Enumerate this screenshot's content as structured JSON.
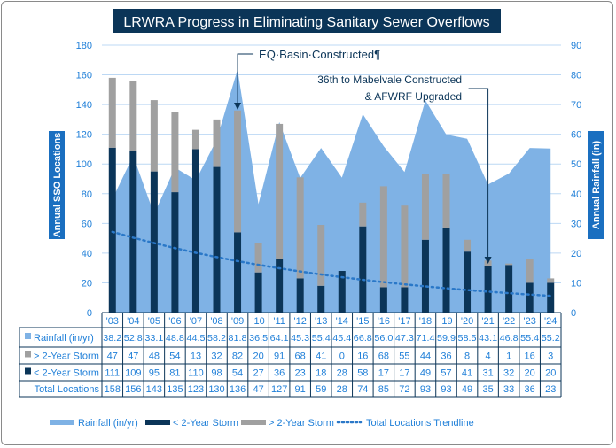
{
  "chart_data": {
    "type": "bar+area+line",
    "title": "LRWRA Progress in Eliminating Sanitary Sewer Overflows",
    "ylabel_left": "Annual SSO Locations",
    "ylabel_right": "Annual Rainfall (in)",
    "ylim_left": [
      0,
      180
    ],
    "ylim_right": [
      0,
      90
    ],
    "yticks_left": [
      0,
      20,
      40,
      60,
      80,
      100,
      120,
      140,
      160,
      180
    ],
    "yticks_right": [
      0,
      10,
      20,
      30,
      40,
      50,
      60,
      70,
      80,
      90
    ],
    "grid": true,
    "legend_position": "bottom",
    "categories": [
      "'03",
      "'04",
      "'05",
      "'06",
      "'07",
      "'08",
      "'09",
      "'10",
      "'11",
      "'12",
      "'13",
      "'14",
      "'15",
      "'16",
      "'17",
      "'18",
      "'19",
      "'20",
      "'21",
      "'22",
      "'23",
      "'24"
    ],
    "series": [
      {
        "name": "Rainfall (in/yr)",
        "type": "area",
        "axis": "right",
        "color": "#7fb2e5",
        "values": [
          38.2,
          52.8,
          33.1,
          48.8,
          44.5,
          58.2,
          81.8,
          36.5,
          64.1,
          45.3,
          55.4,
          45.4,
          66.8,
          56.0,
          47.3,
          71.4,
          59.9,
          58.5,
          43.1,
          46.8,
          55.4,
          55.2
        ]
      },
      {
        "name": "> 2-Year Storm",
        "type": "bar",
        "color": "#a0a0a0",
        "values": [
          47,
          47,
          48,
          54,
          13,
          32,
          82,
          20,
          91,
          68,
          41,
          0,
          16,
          68,
          55,
          44,
          36,
          8,
          4,
          1,
          16,
          3
        ]
      },
      {
        "name": "< 2-Year Storm",
        "type": "bar",
        "color": "#0b3558",
        "values": [
          111,
          109,
          95,
          81,
          110,
          98,
          54,
          27,
          36,
          23,
          18,
          28,
          58,
          17,
          17,
          49,
          57,
          41,
          31,
          32,
          20,
          20
        ]
      },
      {
        "name": "Total Locations",
        "type": "table-row",
        "values": [
          158,
          156,
          143,
          135,
          123,
          130,
          136,
          47,
          127,
          91,
          59,
          28,
          74,
          85,
          72,
          93,
          93,
          49,
          35,
          33,
          36,
          23
        ]
      },
      {
        "name": "Total Locations Trendline",
        "type": "line",
        "style": "dotted",
        "color": "#2a78c8"
      }
    ],
    "annotations": [
      {
        "text": "EQ·Basin·Constructed¶",
        "category": "'09"
      },
      {
        "text_lines": [
          "36th to Mabelvale Constructed",
          "& AFWRF Upgraded"
        ],
        "category": "'21"
      }
    ],
    "table_labels": [
      "Rainfall (in/yr)",
      "> 2-Year Storm",
      "< 2-Year Storm",
      "Total Locations"
    ]
  },
  "colors": {
    "text": "#1f7fd8",
    "navy": "#0b3558",
    "grid": "#bcd8f4"
  }
}
